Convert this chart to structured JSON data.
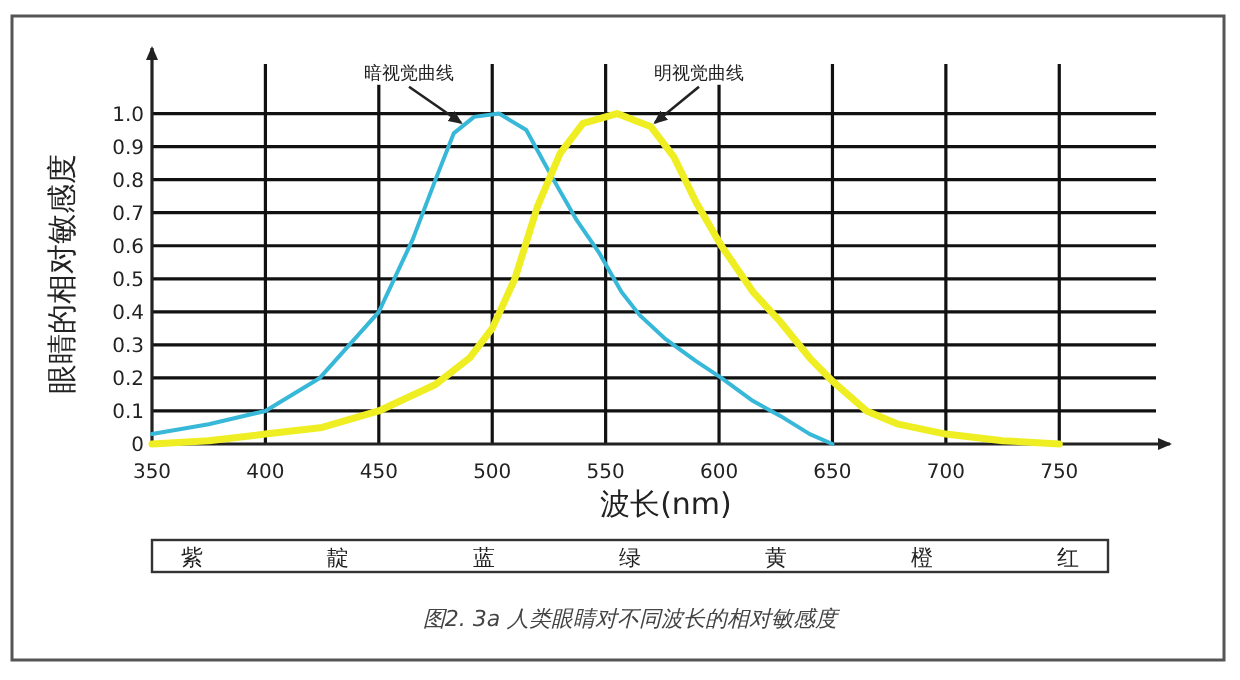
{
  "chart_data": {
    "type": "line",
    "ylabel": "眼睛的相对敏感度",
    "xlabel": "波长(nm)",
    "xlim": [
      350,
      790
    ],
    "ylim": [
      0,
      1.15
    ],
    "xticks": [
      350,
      400,
      450,
      500,
      550,
      600,
      650,
      700,
      750
    ],
    "yticks": [
      {
        "value": 0,
        "label": "0"
      },
      0.1,
      0.2,
      0.3,
      0.4,
      0.5,
      0.6,
      0.7,
      0.8,
      0.9,
      {
        "value": 1,
        "label": "1.0"
      }
    ],
    "grid": true,
    "marker": "none",
    "line_style": "solid",
    "series": [
      {
        "color": "#38b8d8",
        "x": [
          350,
          375,
          400,
          424,
          450,
          465,
          475,
          483,
          492,
          503,
          515,
          527,
          537,
          547,
          557,
          565,
          576,
          590,
          601,
          615,
          627,
          640,
          650
        ],
        "values": [
          0.03,
          0.06,
          0.1,
          0.2,
          0.4,
          0.62,
          0.8,
          0.94,
          0.99,
          1.0,
          0.95,
          0.8,
          0.68,
          0.58,
          0.46,
          0.39,
          0.32,
          0.25,
          0.2,
          0.13,
          0.085,
          0.03,
          0.0
        ]
      },
      {
        "color": "#eeee22",
        "x": [
          350,
          375,
          400,
          425,
          450,
          475,
          490,
          500,
          510,
          520,
          530,
          540,
          555,
          570,
          580,
          590,
          601,
          615,
          627,
          640,
          650,
          665,
          679,
          700,
          725,
          750
        ],
        "values": [
          0.0,
          0.01,
          0.03,
          0.05,
          0.1,
          0.18,
          0.26,
          0.35,
          0.5,
          0.72,
          0.88,
          0.97,
          1.0,
          0.96,
          0.87,
          0.73,
          0.6,
          0.46,
          0.37,
          0.26,
          0.19,
          0.1,
          0.06,
          0.03,
          0.01,
          0.0
        ]
      }
    ],
    "annotations": [
      {
        "text": "暗视觉曲线",
        "x": 488,
        "y": 0.96
      },
      {
        "text": "明视觉曲线",
        "x": 570,
        "y": 0.96
      },
      "紫",
      "靛",
      "蓝",
      "绿",
      "黄",
      "橙",
      "红",
      "图2. 3a  人类眼睛对不同波长的相对敏感度"
    ]
  }
}
